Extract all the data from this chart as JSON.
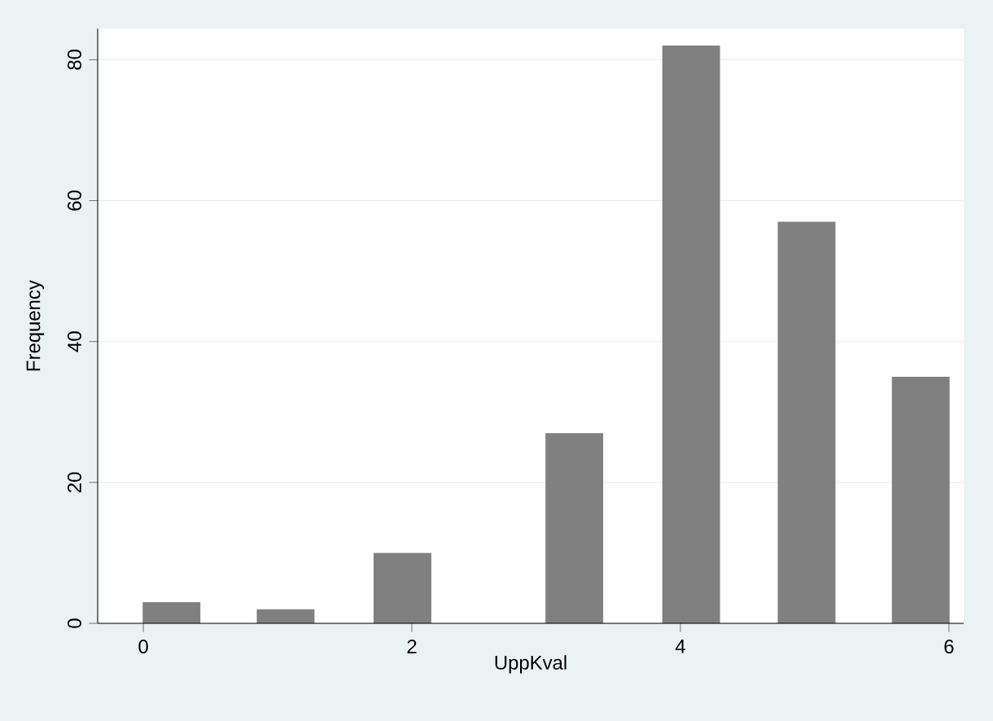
{
  "chart_data": {
    "type": "bar",
    "xlabel": "UppKval",
    "ylabel": "Frequency",
    "x": [
      0.21,
      1.06,
      1.93,
      3.21,
      4.08,
      4.94,
      5.79
    ],
    "values": [
      3,
      2,
      10,
      27,
      82,
      57,
      35
    ],
    "color": "#808080",
    "xlim": [
      -0.34,
      6.11
    ],
    "ylim": [
      0,
      84.4
    ],
    "xticks": [
      0,
      2,
      4,
      6
    ],
    "yticks": [
      0,
      20,
      40,
      60,
      80
    ],
    "grid": "y"
  }
}
